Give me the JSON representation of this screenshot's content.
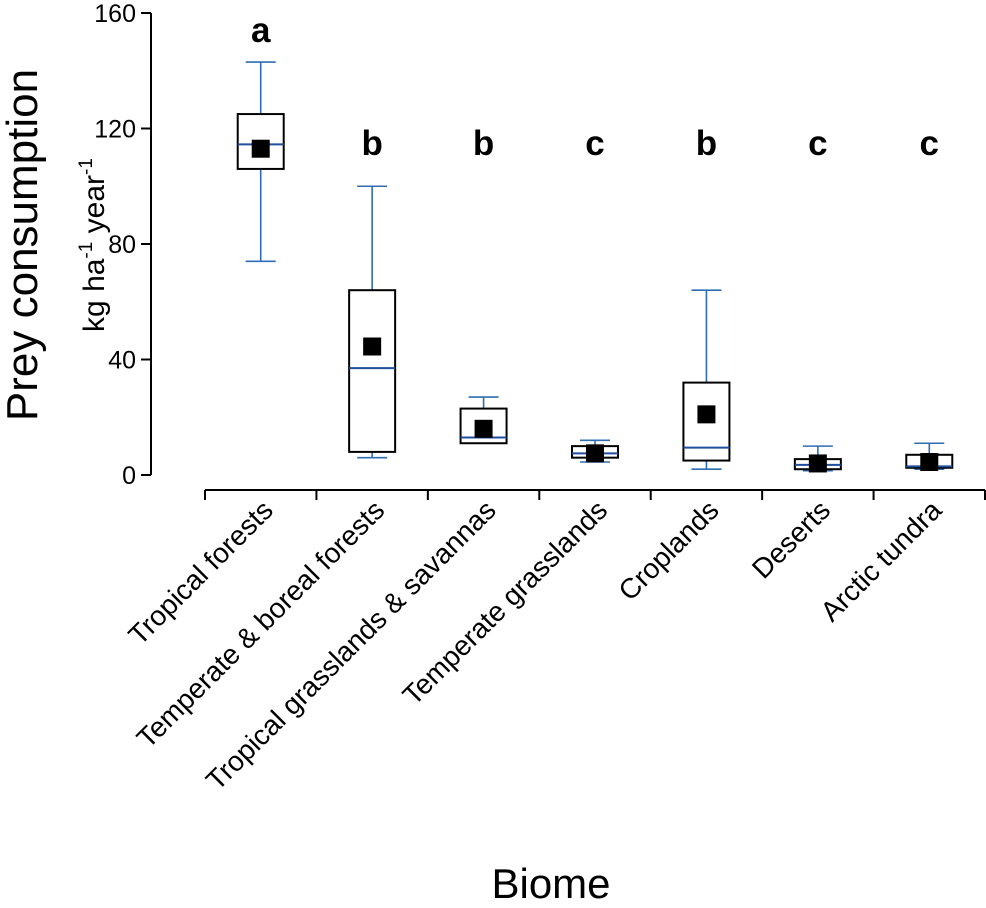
{
  "chart_data": {
    "type": "box",
    "ylabel": "Prey consumption",
    "ylabel_unit": {
      "base1": "kg ha",
      "sup1": "-1",
      "base2": " year",
      "sup2": "-1"
    },
    "xlabel": "Biome",
    "ylim": [
      0,
      160
    ],
    "yticks": [
      0,
      40,
      80,
      120,
      160
    ],
    "grid": false,
    "colors": {
      "whisker": "#2f6db3",
      "median": "#1f4e9c",
      "box": "#000000",
      "mean_marker": "#000000"
    },
    "categories": [
      "Tropical forests",
      "Temperate & boreal forests",
      "Tropical grasslands & savannas",
      "Temperate grasslands",
      "Croplands",
      "Deserts",
      "Arctic tundra"
    ],
    "significance_letters": [
      "a",
      "b",
      "b",
      "c",
      "b",
      "c",
      "c"
    ],
    "boxes": [
      {
        "whisker_low": 74,
        "q1": 106,
        "median": 114.5,
        "q3": 125,
        "whisker_high": 143,
        "mean": 113
      },
      {
        "whisker_low": 6,
        "q1": 8,
        "median": 37,
        "q3": 64,
        "whisker_high": 100,
        "mean": 44.5
      },
      {
        "whisker_low": 11,
        "q1": 11,
        "median": 13,
        "q3": 23,
        "whisker_high": 27,
        "mean": 16
      },
      {
        "whisker_low": 4.5,
        "q1": 6,
        "median": 7.5,
        "q3": 10,
        "whisker_high": 12,
        "mean": 7.5
      },
      {
        "whisker_low": 2,
        "q1": 5,
        "median": 9.5,
        "q3": 32,
        "whisker_high": 64,
        "mean": 21
      },
      {
        "whisker_low": 1.5,
        "q1": 2,
        "median": 3.5,
        "q3": 5.5,
        "whisker_high": 10,
        "mean": 4
      },
      {
        "whisker_low": 2,
        "q1": 2.5,
        "median": 3,
        "q3": 7,
        "whisker_high": 11,
        "mean": 4.5
      }
    ]
  }
}
